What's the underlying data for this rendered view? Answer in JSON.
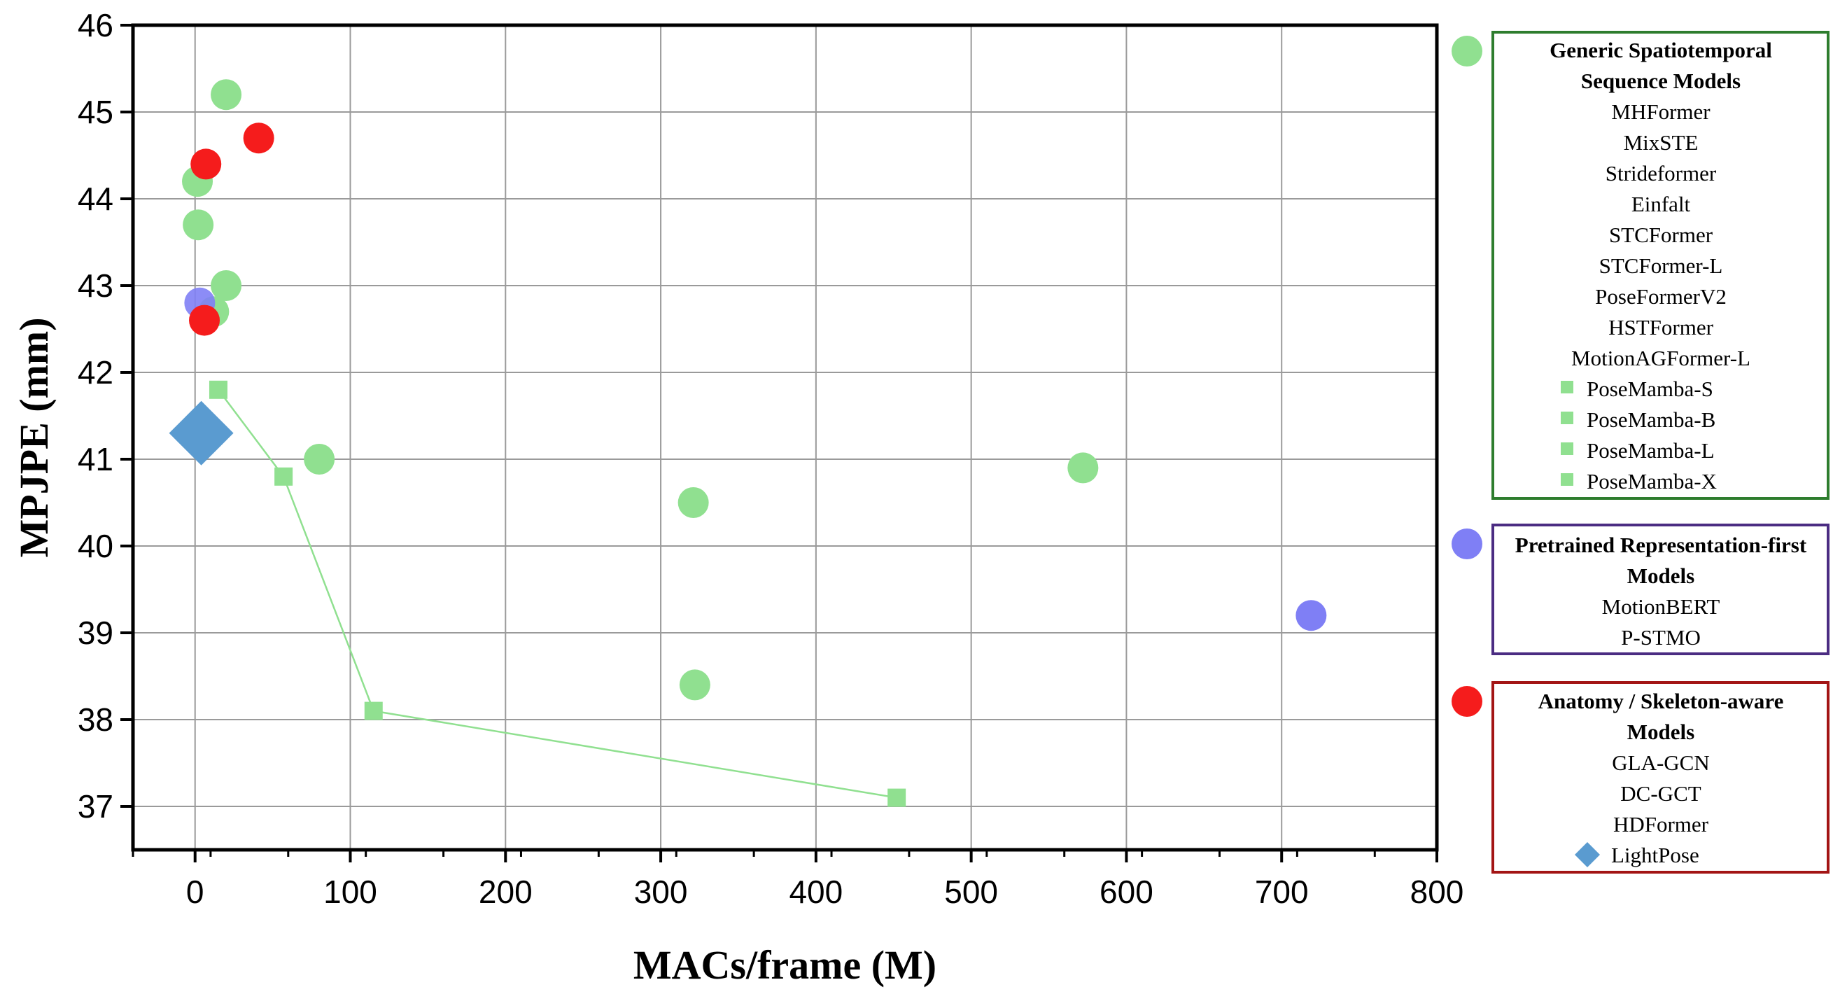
{
  "chart_data": {
    "type": "scatter",
    "xlabel": "MACs/frame (M)",
    "ylabel": "MPJPE (mm)",
    "xlim": [
      -40,
      800
    ],
    "ylim": [
      36.5,
      46
    ],
    "xticks": [
      0,
      100,
      200,
      300,
      400,
      500,
      600,
      700,
      800
    ],
    "yticks": [
      37,
      38,
      39,
      40,
      41,
      42,
      43,
      44,
      45,
      46
    ],
    "grid": true,
    "legend_position": "right",
    "colors": {
      "generic": "#90e090",
      "pretrained": "#7f7ff5",
      "anatomy": "#f51c1c",
      "lightpose": "#5a9bd0"
    },
    "groups": [
      {
        "title": "Generic Spatiotemporal Sequence Models",
        "title_lines": [
          "Generic Spatiotemporal",
          "Sequence Models"
        ],
        "color": "#90e090",
        "frame_color": "#2e7d2e",
        "marker": "circle",
        "models": [
          "MHFormer",
          "MixSTE",
          "Strideformer",
          "Einfalt",
          "STCFormer",
          "STCFormer-L",
          "PoseFormerV2",
          "HSTFormer",
          "MotionAGFormer-L"
        ],
        "series_models": [
          "PoseMamba-S",
          "PoseMamba-B",
          "PoseMamba-L",
          "PoseMamba-X"
        ]
      },
      {
        "title": "Pretrained Representation-first Models",
        "title_lines": [
          "Pretrained Representation-first",
          "Models"
        ],
        "color": "#7f7ff5",
        "frame_color": "#4b2c82",
        "marker": "circle",
        "models": [
          "MotionBERT",
          "P-STMO"
        ]
      },
      {
        "title": "Anatomy / Skeleton-aware Models",
        "title_lines": [
          "Anatomy / Skeleton-aware",
          "Models"
        ],
        "color": "#f51c1c",
        "frame_color": "#a31515",
        "marker": "circle",
        "models": [
          "GLA-GCN",
          "DC-GCT",
          "HDFormer"
        ],
        "extra_entry": "LightPose"
      }
    ],
    "points": [
      {
        "x": 20,
        "y": 45.2,
        "group": "generic"
      },
      {
        "x": 1.5,
        "y": 44.2,
        "group": "generic"
      },
      {
        "x": 2,
        "y": 43.7,
        "group": "generic"
      },
      {
        "x": 20,
        "y": 43.0,
        "group": "generic"
      },
      {
        "x": 12,
        "y": 42.7,
        "group": "generic"
      },
      {
        "x": 80,
        "y": 41.0,
        "group": "generic"
      },
      {
        "x": 321,
        "y": 40.5,
        "group": "generic"
      },
      {
        "x": 322,
        "y": 38.4,
        "group": "generic"
      },
      {
        "x": 572,
        "y": 40.9,
        "group": "generic"
      },
      {
        "x": 3,
        "y": 42.8,
        "group": "pretrained"
      },
      {
        "x": 719,
        "y": 39.2,
        "group": "pretrained"
      },
      {
        "x": 41,
        "y": 44.7,
        "group": "anatomy"
      },
      {
        "x": 7,
        "y": 44.4,
        "group": "anatomy"
      },
      {
        "x": 6,
        "y": 42.6,
        "group": "anatomy"
      }
    ],
    "series": [
      {
        "name": "PoseMamba",
        "x": [
          15,
          57,
          115,
          452
        ],
        "y": [
          41.8,
          40.8,
          38.1,
          37.1
        ],
        "color": "#90e090",
        "marker": "square"
      }
    ],
    "highlight": {
      "name": "LightPose",
      "x": 4,
      "y": 41.3,
      "color": "#5a9bd0",
      "marker": "diamond"
    }
  }
}
